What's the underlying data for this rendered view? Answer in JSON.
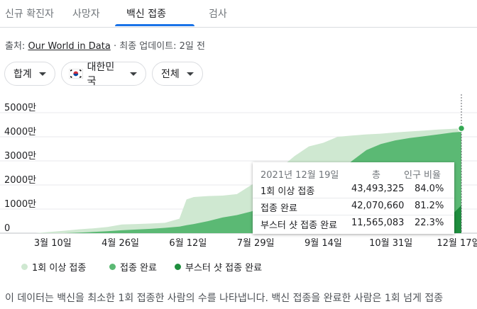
{
  "tabs": [
    {
      "label": "신규 확진자"
    },
    {
      "label": "사망자"
    },
    {
      "label": "백신 접종"
    },
    {
      "label": "검사"
    }
  ],
  "active_tab": 2,
  "accent_color": "#1a73e8",
  "source": {
    "prefix": "출처:",
    "link": "Our World in Data",
    "separator": "·",
    "updated": "최종 업데이트: 2일 전"
  },
  "filters": {
    "total": "합계",
    "country": "대한민국",
    "scope": "전체"
  },
  "tooltip": {
    "date": "2021년 12월 19일",
    "col_total": "총",
    "col_ratio": "인구 비율",
    "rows": [
      {
        "label": "1회 이상 접종",
        "value": "43,493,325",
        "ratio": "84.0%"
      },
      {
        "label": "접종 완료",
        "value": "42,070,660",
        "ratio": "81.2%"
      },
      {
        "label": "부스터 샷 접종 완료",
        "value": "11,565,083",
        "ratio": "22.3%"
      }
    ]
  },
  "legend": [
    {
      "label": "1회 이상 접종",
      "color": "#cfe8d1"
    },
    {
      "label": "접종 완료",
      "color": "#5bb974"
    },
    {
      "label": "부스터 샷 접종 완료",
      "color": "#1e8e3e"
    }
  ],
  "description": "이 데이터는 백신을 최소한 1회 접종한 사람의 수를 나타냅니다. 백신 접종을 완료한 사람은 1회 넘게 접종",
  "chart_data": {
    "type": "area",
    "ytick_labels": [
      "0",
      "1000만",
      "2000만",
      "3000만",
      "4000만",
      "5000만"
    ],
    "yticks": [
      0,
      10000000,
      20000000,
      30000000,
      40000000,
      50000000
    ],
    "ylim": [
      0,
      50000000
    ],
    "xlim": [
      0,
      296
    ],
    "xtick_labels": [
      "3월 10일",
      "4월 26일",
      "6월 12일",
      "7월 29일",
      "9월 14일",
      "10월 31일",
      "12월 17일"
    ],
    "xticks": [
      12,
      59,
      106,
      153,
      200,
      247,
      294
    ],
    "grid": true,
    "x": [
      0,
      10,
      20,
      30,
      40,
      50,
      60,
      70,
      80,
      90,
      100,
      105,
      110,
      120,
      130,
      140,
      150,
      160,
      170,
      180,
      190,
      200,
      210,
      220,
      230,
      240,
      250,
      260,
      270,
      280,
      290,
      296
    ],
    "series": [
      {
        "name": "1회 이상 접종",
        "color": "#cfe8d1",
        "values": [
          0,
          500000,
          1000000,
          1600000,
          2000000,
          2600000,
          3600000,
          3800000,
          4000000,
          4300000,
          6000000,
          14000000,
          15000000,
          15400000,
          15600000,
          16200000,
          20000000,
          23000000,
          27000000,
          32000000,
          36000000,
          37500000,
          40000000,
          40500000,
          41000000,
          41300000,
          41800000,
          42200000,
          42600000,
          43000000,
          43300000,
          43493325
        ]
      },
      {
        "name": "접종 완료",
        "color": "#5bb974",
        "values": [
          0,
          0,
          0,
          200000,
          500000,
          800000,
          1200000,
          1500000,
          1800000,
          2200000,
          2700000,
          3300000,
          3800000,
          5000000,
          6500000,
          7500000,
          9000000,
          11000000,
          12500000,
          14000000,
          17000000,
          21000000,
          25000000,
          30000000,
          34500000,
          37000000,
          38500000,
          39500000,
          40200000,
          41000000,
          41800000,
          42070660
        ]
      },
      {
        "name": "부스터 샷 접종 완료",
        "color": "#1e8e3e",
        "values": [
          0,
          0,
          0,
          0,
          0,
          0,
          0,
          0,
          0,
          0,
          0,
          0,
          0,
          0,
          0,
          0,
          0,
          0,
          0,
          0,
          0,
          0,
          0,
          0,
          0,
          300000,
          600000,
          1000000,
          2000000,
          4000000,
          8000000,
          11565083
        ]
      }
    ],
    "highlight_x": 296
  }
}
